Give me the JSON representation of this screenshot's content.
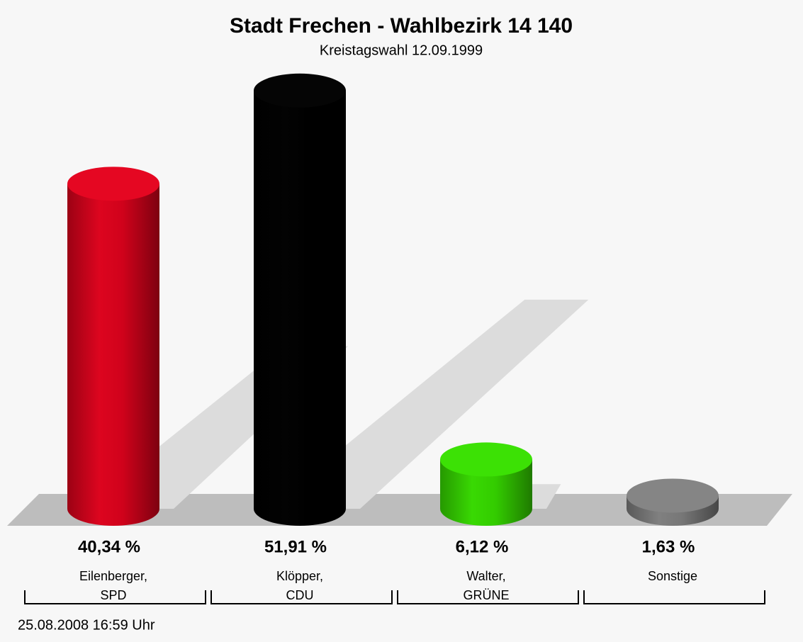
{
  "chart_data": {
    "type": "bar3d",
    "title": "Stadt Frechen - Wahlbezirk 14 140",
    "subtitle": "Kreistagswahl 12.09.1999",
    "footer": "25.08.2008 16:59 Uhr",
    "categories": [
      "Eilenberger,\nSPD",
      "Klöpper,\nCDU",
      "Walter,\nGRÜNE",
      "Sonstige"
    ],
    "values": [
      40.34,
      51.91,
      6.12,
      1.63
    ],
    "value_labels": [
      "40,34 %",
      "51,91 %",
      "6,12 %",
      "1,63 %"
    ],
    "colors": [
      "#d0021b",
      "#000000",
      "#33cc00",
      "#777777"
    ]
  }
}
